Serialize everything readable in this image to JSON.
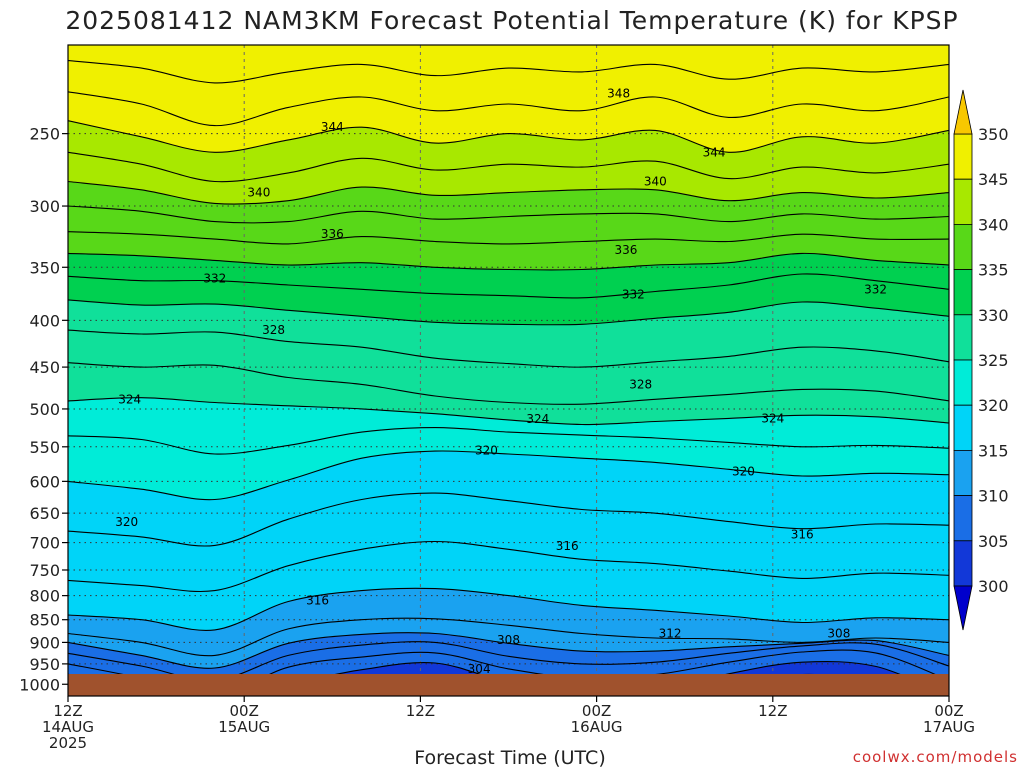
{
  "chart_data": {
    "type": "heatmap",
    "title": "2025081412 NAM3KM Forecast Potential Temperature (K) for KPSP",
    "xlabel": "Forecast Time (UTC)",
    "ylabel": "",
    "credit": "coolwx.com/models",
    "x_ticks": [
      {
        "hour": 0,
        "line1": "12Z",
        "line2": "14AUG",
        "line3": "2025"
      },
      {
        "hour": 12,
        "line1": "00Z",
        "line2": "15AUG",
        "line3": ""
      },
      {
        "hour": 24,
        "line1": "12Z",
        "line2": "",
        "line3": ""
      },
      {
        "hour": 36,
        "line1": "00Z",
        "line2": "16AUG",
        "line3": ""
      },
      {
        "hour": 48,
        "line1": "12Z",
        "line2": "",
        "line3": ""
      },
      {
        "hour": 60,
        "line1": "00Z",
        "line2": "17AUG",
        "line3": ""
      }
    ],
    "xlim": [
      0,
      60
    ],
    "y_ticks": [
      250,
      300,
      350,
      400,
      450,
      500,
      550,
      600,
      650,
      700,
      750,
      800,
      850,
      900,
      950,
      1000
    ],
    "ylim": [
      200,
      1030
    ],
    "y_scale": "log-pressure",
    "grid": true,
    "colorbar": {
      "ticks": [
        300,
        305,
        310,
        315,
        320,
        325,
        330,
        335,
        340,
        345,
        350
      ],
      "colors": [
        "#0000cc",
        "#1238d8",
        "#1a6ee6",
        "#1aa2f0",
        "#00d4f8",
        "#00ecd8",
        "#10e09a",
        "#00d050",
        "#58d818",
        "#a8e800",
        "#f0f000",
        "#f8c800"
      ],
      "placement": "right"
    },
    "levels": [
      {
        "value": 350,
        "p": [
          200,
          200,
          200,
          200,
          200,
          200,
          200,
          200,
          200,
          200,
          200,
          200,
          200
        ]
      },
      {
        "value": 348,
        "p": [
          208,
          212,
          220,
          214,
          210,
          216,
          212,
          214,
          210,
          218,
          212,
          214,
          210
        ]
      },
      {
        "value": 346,
        "p": [
          225,
          232,
          245,
          234,
          228,
          236,
          232,
          236,
          228,
          240,
          232,
          236,
          228
        ]
      },
      {
        "value": 344,
        "p": [
          242,
          252,
          262,
          254,
          246,
          256,
          250,
          254,
          248,
          262,
          252,
          256,
          248
        ]
      },
      {
        "value": 342,
        "p": [
          262,
          270,
          282,
          276,
          266,
          274,
          270,
          272,
          268,
          280,
          272,
          276,
          270
        ]
      },
      {
        "value": 340,
        "p": [
          282,
          288,
          298,
          296,
          286,
          292,
          290,
          288,
          288,
          296,
          290,
          294,
          290
        ]
      },
      {
        "value": 338,
        "p": [
          300,
          304,
          312,
          312,
          304,
          310,
          308,
          306,
          306,
          312,
          306,
          310,
          308
        ]
      },
      {
        "value": 336,
        "p": [
          320,
          322,
          326,
          330,
          324,
          328,
          330,
          328,
          326,
          328,
          322,
          326,
          326
        ]
      },
      {
        "value": 334,
        "p": [
          338,
          340,
          344,
          348,
          346,
          350,
          352,
          352,
          348,
          346,
          338,
          344,
          348
        ]
      },
      {
        "value": 332,
        "p": [
          358,
          362,
          362,
          366,
          370,
          374,
          376,
          378,
          372,
          366,
          356,
          362,
          370
        ]
      },
      {
        "value": 330,
        "p": [
          380,
          385,
          384,
          390,
          396,
          402,
          404,
          404,
          398,
          392,
          382,
          388,
          396
        ]
      },
      {
        "value": 328,
        "p": [
          410,
          414,
          412,
          422,
          428,
          440,
          446,
          450,
          444,
          438,
          428,
          432,
          444
        ]
      },
      {
        "value": 326,
        "p": [
          445,
          450,
          448,
          462,
          470,
          484,
          492,
          494,
          488,
          482,
          476,
          478,
          490
        ]
      },
      {
        "value": 324,
        "p": [
          490,
          486,
          492,
          496,
          500,
          506,
          514,
          520,
          516,
          512,
          508,
          510,
          518
        ]
      },
      {
        "value": 322,
        "p": [
          535,
          540,
          560,
          548,
          530,
          524,
          530,
          534,
          538,
          544,
          550,
          548,
          552
        ]
      },
      {
        "value": 320,
        "p": [
          600,
          612,
          628,
          598,
          566,
          556,
          560,
          566,
          572,
          582,
          592,
          588,
          590
        ]
      },
      {
        "value": 318,
        "p": [
          680,
          690,
          705,
          660,
          628,
          618,
          630,
          644,
          650,
          664,
          676,
          668,
          670
        ]
      },
      {
        "value": 316,
        "p": [
          770,
          780,
          790,
          742,
          712,
          698,
          712,
          730,
          738,
          752,
          766,
          756,
          760
        ]
      },
      {
        "value": 314,
        "p": [
          840,
          850,
          872,
          812,
          790,
          786,
          800,
          820,
          830,
          842,
          856,
          846,
          850
        ]
      },
      {
        "value": 312,
        "p": [
          880,
          900,
          930,
          870,
          850,
          848,
          862,
          880,
          890,
          892,
          900,
          890,
          900
        ]
      },
      {
        "value": 310,
        "p": [
          900,
          930,
          960,
          902,
          882,
          880,
          902,
          920,
          920,
          910,
          902,
          896,
          930
        ]
      },
      {
        "value": 308,
        "p": [
          925,
          955,
          990,
          930,
          906,
          900,
          932,
          950,
          946,
          925,
          908,
          904,
          955
        ]
      },
      {
        "value": 306,
        "p": [
          950,
          985,
          1030,
          958,
          934,
          924,
          962,
          985,
          976,
          946,
          922,
          924,
          990
        ]
      },
      {
        "value": 304,
        "p": [
          975,
          1030,
          1030,
          1000,
          964,
          948,
          996,
          1030,
          1020,
          974,
          946,
          956,
          1030
        ]
      },
      {
        "value": 302,
        "p": [
          1000,
          1030,
          1030,
          1030,
          1000,
          982,
          1030,
          1030,
          1030,
          1010,
          976,
          994,
          1030
        ]
      },
      {
        "value": 300,
        "p": [
          1030,
          1030,
          1030,
          1030,
          1030,
          1030,
          1030,
          1030,
          1030,
          1030,
          1010,
          1030,
          1030
        ]
      }
    ],
    "contour_labels": [
      {
        "text": "348",
        "hour": 37.5,
        "p": 226
      },
      {
        "text": "344",
        "hour": 18,
        "p": 246
      },
      {
        "text": "344",
        "hour": 44,
        "p": 262
      },
      {
        "text": "340",
        "hour": 13,
        "p": 290
      },
      {
        "text": "340",
        "hour": 40,
        "p": 282
      },
      {
        "text": "336",
        "hour": 18,
        "p": 322
      },
      {
        "text": "336",
        "hour": 38,
        "p": 335
      },
      {
        "text": "332",
        "hour": 10,
        "p": 360
      },
      {
        "text": "332",
        "hour": 38.5,
        "p": 375
      },
      {
        "text": "332",
        "hour": 55,
        "p": 370
      },
      {
        "text": "328",
        "hour": 14,
        "p": 410
      },
      {
        "text": "328",
        "hour": 39,
        "p": 470
      },
      {
        "text": "324",
        "hour": 4.2,
        "p": 488
      },
      {
        "text": "324",
        "hour": 32,
        "p": 513
      },
      {
        "text": "324",
        "hour": 48,
        "p": 512
      },
      {
        "text": "320",
        "hour": 28.5,
        "p": 555
      },
      {
        "text": "320",
        "hour": 46,
        "p": 585
      },
      {
        "text": "320",
        "hour": 4,
        "p": 665
      },
      {
        "text": "316",
        "hour": 34,
        "p": 706
      },
      {
        "text": "316",
        "hour": 50,
        "p": 686
      },
      {
        "text": "316",
        "hour": 17,
        "p": 810
      },
      {
        "text": "312",
        "hour": 41,
        "p": 880
      },
      {
        "text": "308",
        "hour": 30,
        "p": 895
      },
      {
        "text": "308",
        "hour": 52.5,
        "p": 880
      },
      {
        "text": "304",
        "hour": 28,
        "p": 962
      }
    ]
  }
}
